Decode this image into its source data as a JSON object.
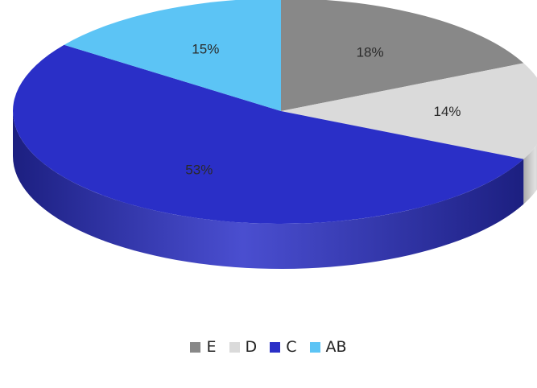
{
  "chart_data": {
    "type": "pie",
    "style": "3d",
    "title": "",
    "legend_position": "bottom",
    "start_angle_deg": 90,
    "direction": "clockwise",
    "slices": [
      {
        "label": "E",
        "value": 18,
        "value_label": "18%",
        "color": "#888888",
        "side_color": "#5e5e5e"
      },
      {
        "label": "D",
        "value": 14,
        "value_label": "14%",
        "color": "#dadada",
        "side_color": "#a9a9a9"
      },
      {
        "label": "C",
        "value": 53,
        "value_label": "53%",
        "color": "#2a2fc7",
        "side_color": "#1c1f80"
      },
      {
        "label": "AB",
        "value": 15,
        "value_label": "15%",
        "color": "#5cc4f5",
        "side_color": "#3890bb"
      }
    ]
  }
}
